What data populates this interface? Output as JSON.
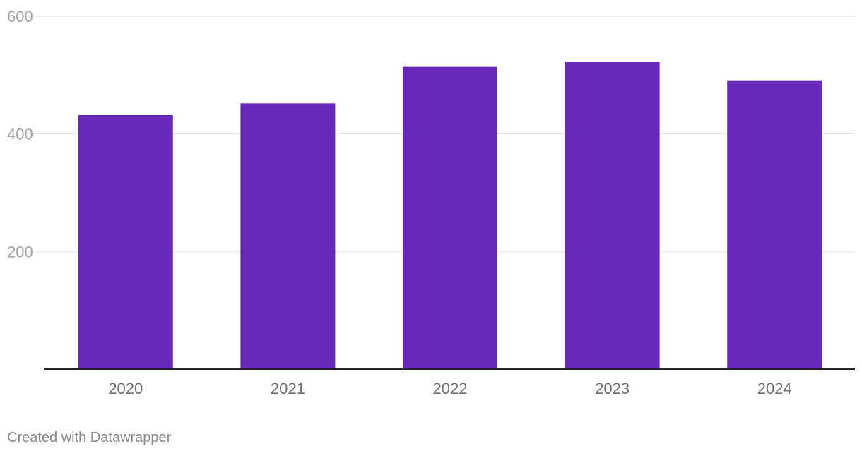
{
  "chart_data": {
    "type": "bar",
    "title": "",
    "xlabel": "",
    "ylabel": "",
    "categories": [
      "2020",
      "2021",
      "2022",
      "2023",
      "2024"
    ],
    "values": [
      432,
      452,
      514,
      522,
      490
    ],
    "ylim": [
      0,
      600
    ],
    "yticks": [
      200,
      400,
      600
    ],
    "grid": true,
    "bar_color": "#6629ba",
    "legend": "none"
  },
  "footer": {
    "credit": "Created with Datawrapper"
  }
}
